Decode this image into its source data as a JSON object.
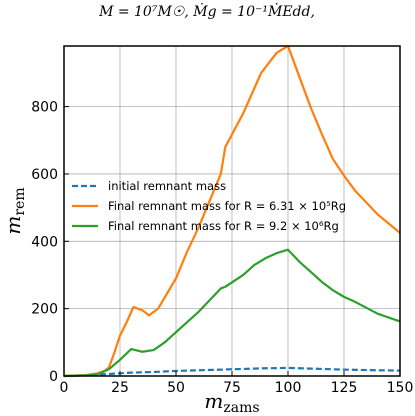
{
  "chart_data": {
    "type": "line",
    "title": "M = 10⁷M☉,  Ṁg = 10⁻¹ṀEdd,",
    "xlabel": "m",
    "xlabel_sub": "zams",
    "ylabel": "m",
    "ylabel_sub": "rem",
    "xlim": [
      0,
      150
    ],
    "ylim": [
      0,
      980
    ],
    "xticks": [
      0,
      25,
      50,
      75,
      100,
      125,
      150
    ],
    "yticks": [
      0,
      200,
      400,
      600,
      800
    ],
    "grid": true,
    "legend_position": "center-left",
    "series": [
      {
        "name": "initial remnant mass",
        "color": "#1f77b4",
        "style": "dashed",
        "x": [
          0,
          10,
          15,
          20,
          25,
          30,
          40,
          50,
          60,
          75,
          90,
          100,
          110,
          125,
          140,
          150
        ],
        "y": [
          0,
          2,
          4,
          6,
          8,
          10,
          12,
          15,
          17,
          20,
          23,
          24,
          22,
          19,
          17,
          16
        ]
      },
      {
        "name": "Final remnant mass for R = 6.31 × 10⁵Rg",
        "color": "#ff7f0e",
        "style": "solid",
        "x": [
          0,
          10,
          15,
          18,
          20,
          22,
          25,
          28,
          31,
          35,
          38,
          42,
          50,
          55,
          60,
          65,
          70,
          72,
          80,
          88,
          95,
          100,
          105,
          110,
          115,
          120,
          125,
          130,
          140,
          150
        ],
        "y": [
          0,
          3,
          8,
          15,
          25,
          60,
          120,
          160,
          205,
          195,
          180,
          200,
          290,
          370,
          440,
          520,
          600,
          680,
          780,
          900,
          960,
          980,
          890,
          800,
          720,
          645,
          595,
          550,
          480,
          425
        ]
      },
      {
        "name": "Final remnant mass for R = 9.2 × 10⁶Rg",
        "color": "#2ca02c",
        "style": "solid",
        "x": [
          0,
          10,
          15,
          20,
          25,
          30,
          35,
          40,
          45,
          50,
          55,
          60,
          65,
          70,
          72,
          80,
          85,
          90,
          95,
          100,
          105,
          110,
          115,
          120,
          125,
          130,
          140,
          150
        ],
        "y": [
          0,
          2,
          5,
          20,
          48,
          80,
          72,
          77,
          100,
          130,
          160,
          190,
          225,
          260,
          265,
          300,
          330,
          350,
          365,
          375,
          340,
          310,
          280,
          255,
          235,
          220,
          185,
          162
        ]
      }
    ]
  }
}
